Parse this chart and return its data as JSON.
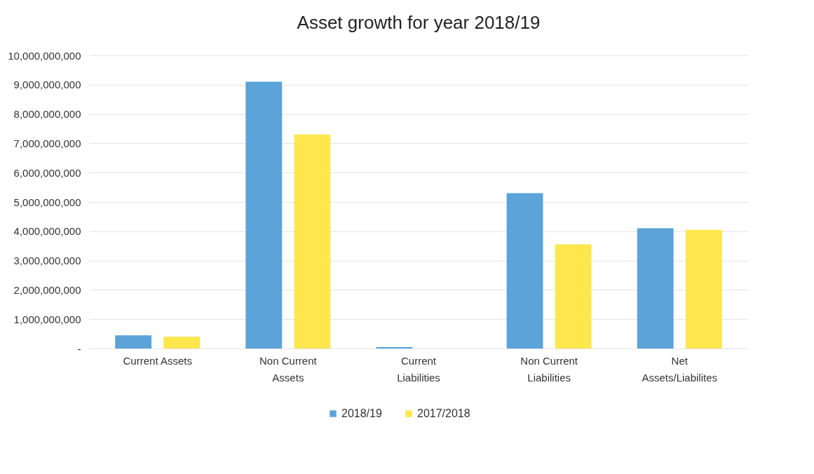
{
  "chart_data": {
    "type": "bar",
    "title": "Asset growth for year 2018/19",
    "categories": [
      "Current Assets",
      "Non Current Assets",
      "Current Liabilities",
      "Non Current Liabilities",
      "Net Assets/Liabilites"
    ],
    "series": [
      {
        "name": "2018/19",
        "color": "#5ba3d9",
        "values": [
          450000000,
          9100000000,
          50000000,
          5300000000,
          4100000000
        ]
      },
      {
        "name": "2017/2018",
        "color": "#fde74c",
        "values": [
          400000000,
          7300000000,
          0,
          3550000000,
          4050000000
        ]
      }
    ],
    "ylim": [
      0,
      10000000000
    ],
    "yticks": [
      {
        "value": 0,
        "label": "-"
      },
      {
        "value": 1000000000,
        "label": "1,000,000,000"
      },
      {
        "value": 2000000000,
        "label": "2,000,000,000"
      },
      {
        "value": 3000000000,
        "label": "3,000,000,000"
      },
      {
        "value": 4000000000,
        "label": "4,000,000,000"
      },
      {
        "value": 5000000000,
        "label": "5,000,000,000"
      },
      {
        "value": 6000000000,
        "label": "6,000,000,000"
      },
      {
        "value": 7000000000,
        "label": "7,000,000,000"
      },
      {
        "value": 8000000000,
        "label": "8,000,000,000"
      },
      {
        "value": 9000000000,
        "label": "9,000,000,000"
      },
      {
        "value": 10000000000,
        "label": "10,000,000,000"
      }
    ],
    "grid": "y",
    "legend": "bottom"
  }
}
